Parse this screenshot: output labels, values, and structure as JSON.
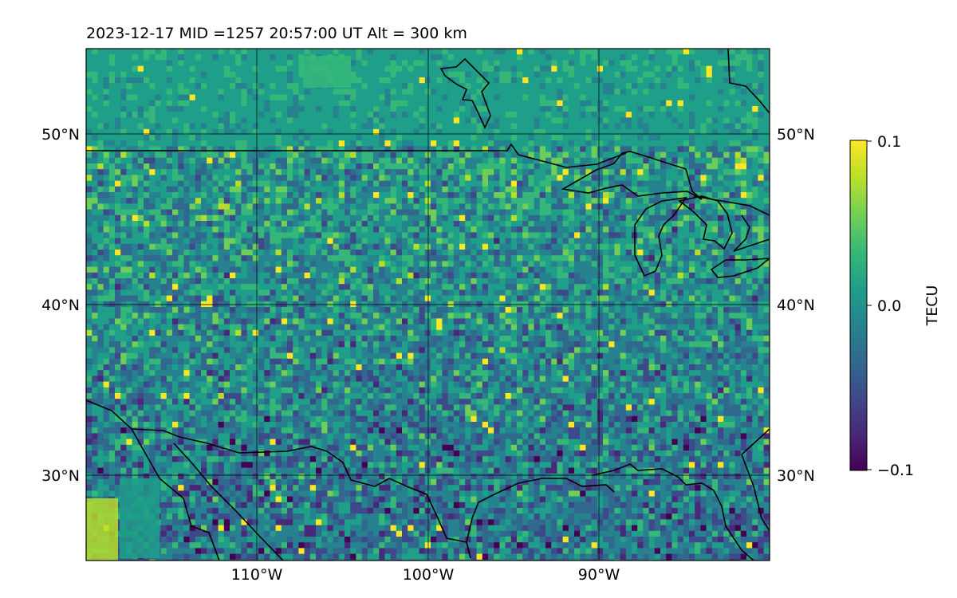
{
  "title": "2023-12-17  MID =1257    20:57:00  UT  Alt = 300 km",
  "map": {
    "lon_range": [
      -120,
      -80
    ],
    "lat_range": [
      25,
      55
    ],
    "lon_ticks": [
      {
        "value": -110,
        "label": "110°W"
      },
      {
        "value": -100,
        "label": "100°W"
      },
      {
        "value": -90,
        "label": "90°W"
      }
    ],
    "lat_ticks": [
      {
        "value": 50,
        "label": "50°N"
      },
      {
        "value": 40,
        "label": "40°N"
      },
      {
        "value": 30,
        "label": "30°N"
      }
    ],
    "gridlines": true,
    "field": "TEC perturbation",
    "colormap": "viridis"
  },
  "colorbar": {
    "label": "TECU",
    "range": [
      -0.1,
      0.1
    ],
    "ticks": [
      {
        "value": 0.1,
        "label": "0.1"
      },
      {
        "value": 0.0,
        "label": "0.0"
      },
      {
        "value": -0.1,
        "label": "−0.1"
      }
    ]
  },
  "colors": {
    "viridis": [
      "#440154",
      "#482878",
      "#3e4989",
      "#31688e",
      "#26828e",
      "#1f9e89",
      "#35b779",
      "#6ece58",
      "#b5de2b",
      "#fde725"
    ]
  }
}
